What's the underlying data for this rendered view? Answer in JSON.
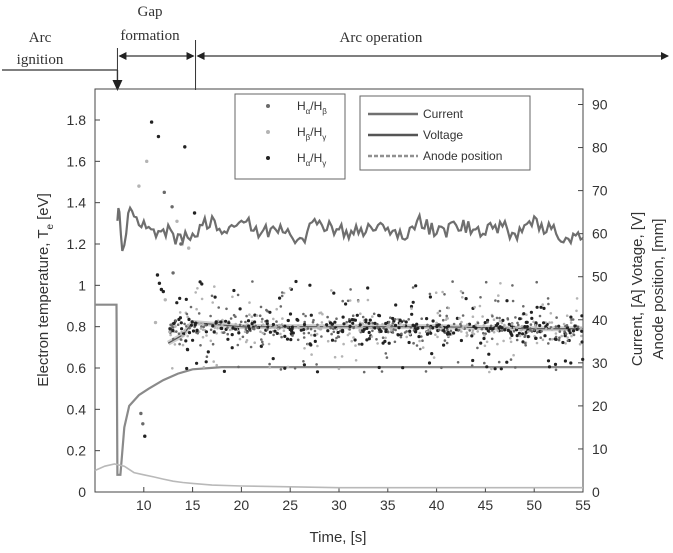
{
  "chart_data": {
    "type": "line",
    "phases": [
      {
        "label_lines": [
          "Arc",
          "ignition"
        ]
      },
      {
        "label_lines": [
          "Gap",
          "formation"
        ]
      },
      {
        "label_lines": [
          "Arc operation"
        ]
      }
    ],
    "xlabel": "Time, [s]",
    "ylabel_left": "Electron temperature, T",
    "ylabel_left_sub": "e",
    "ylabel_left_unit": "[eV]",
    "ylabel_right_line1": "Current, [A] Votage, [V]",
    "ylabel_right_line2": "Anode position, [mm]",
    "xlim": [
      5,
      55
    ],
    "ylim_left": [
      0,
      1.95
    ],
    "ylim_right": [
      0,
      93.6
    ],
    "x_ticks": [
      10,
      15,
      20,
      25,
      30,
      35,
      40,
      45,
      50,
      55
    ],
    "y_left_ticks": [
      0,
      0.2,
      0.4,
      0.6,
      0.8,
      1,
      1.2,
      1.4,
      1.6,
      1.8
    ],
    "y_right_ticks": [
      0,
      10,
      20,
      30,
      40,
      50,
      60,
      70,
      80,
      90
    ],
    "phase_boundaries_x": [
      7.3,
      15.3
    ],
    "legend_left": [
      {
        "label_main": "H",
        "label_sub1": "α",
        "label_slash": "/H",
        "label_sub2": "β",
        "color": "#6a6a6a"
      },
      {
        "label_main": "H",
        "label_sub1": "β",
        "label_slash": "/H",
        "label_sub2": "γ",
        "color": "#b4b4b4"
      },
      {
        "label_main": "H",
        "label_sub1": "α",
        "label_slash": "/H",
        "label_sub2": "γ",
        "color": "#222222"
      }
    ],
    "legend_right": [
      {
        "label": "Current",
        "color": "#707070",
        "style": "solid"
      },
      {
        "label": "Voltage",
        "color": "#555555",
        "style": "solid"
      },
      {
        "label": "Anode position",
        "color": "#909090",
        "style": "dashed"
      }
    ],
    "series": [
      {
        "name": "Current",
        "axis": "right",
        "color": "#8a8a8a",
        "x": [
          5,
          7.2,
          7.3,
          7.6,
          8.0,
          8.5,
          9.5,
          10.5,
          12,
          13.5,
          15,
          18,
          25,
          35,
          45,
          55
        ],
        "y": [
          43.5,
          43.5,
          4,
          4,
          15,
          20,
          22.5,
          24,
          26,
          27.5,
          28.5,
          29,
          29,
          29,
          29,
          29
        ]
      },
      {
        "name": "Voltage",
        "axis": "right",
        "color": "#6e6e6e",
        "x": [
          7.3,
          7.5,
          7.8,
          8.2,
          8.6,
          9,
          9.5,
          10,
          11,
          12,
          13,
          14,
          15,
          16,
          17,
          18,
          19,
          20,
          22,
          24,
          26,
          28,
          30,
          32,
          34,
          36,
          38,
          40,
          42,
          44,
          46,
          48,
          50,
          51,
          52,
          53,
          54,
          55
        ],
        "y": [
          63,
          65,
          56,
          60,
          66,
          64,
          62,
          63,
          61,
          61,
          60,
          58,
          60,
          62,
          64,
          60,
          62,
          63,
          60,
          62,
          59,
          63,
          61,
          60,
          62,
          59,
          63,
          60,
          62,
          61,
          62,
          60,
          64,
          60,
          62,
          58,
          60,
          59
        ]
      },
      {
        "name": "Anode position",
        "axis": "right",
        "color": "#b9b9b9",
        "x": [
          5,
          6,
          7,
          8,
          9,
          10,
          11,
          12,
          13,
          14,
          15,
          17,
          20,
          25,
          30,
          35,
          40,
          45,
          50,
          55
        ],
        "y": [
          5,
          6,
          6.5,
          6,
          4.5,
          4,
          3.5,
          3,
          2.5,
          2.2,
          2,
          1.6,
          1.4,
          1.2,
          1,
          1,
          1,
          1,
          1,
          1
        ]
      }
    ],
    "ratio_band_trend": {
      "axis": "left",
      "x": [
        12.5,
        14,
        15,
        20,
        30,
        40,
        50,
        55
      ],
      "y": [
        0.72,
        0.76,
        0.82,
        0.8,
        0.8,
        0.8,
        0.79,
        0.79
      ]
    },
    "ratio_scatter_early": [
      {
        "x": 10.8,
        "y": 1.79,
        "s": 2
      },
      {
        "x": 11.5,
        "y": 1.72,
        "s": 2
      },
      {
        "x": 12.1,
        "y": 1.45,
        "s": 0
      },
      {
        "x": 12.9,
        "y": 1.38,
        "s": 0
      },
      {
        "x": 13.4,
        "y": 1.31,
        "s": 1
      },
      {
        "x": 14.2,
        "y": 1.67,
        "s": 2
      },
      {
        "x": 13.0,
        "y": 1.06,
        "s": 0
      },
      {
        "x": 12.2,
        "y": 0.93,
        "s": 1
      },
      {
        "x": 11.2,
        "y": 0.82,
        "s": 1
      },
      {
        "x": 11.4,
        "y": 1.05,
        "s": 2
      },
      {
        "x": 11.6,
        "y": 1.01,
        "s": 2
      },
      {
        "x": 11.8,
        "y": 0.98,
        "s": 2
      },
      {
        "x": 12.0,
        "y": 0.97,
        "s": 2
      },
      {
        "x": 9.7,
        "y": 0.38,
        "s": 0
      },
      {
        "x": 9.9,
        "y": 0.33,
        "s": 0
      },
      {
        "x": 10.1,
        "y": 0.27,
        "s": 2
      },
      {
        "x": 9.5,
        "y": 1.48,
        "s": 1
      },
      {
        "x": 10.3,
        "y": 1.6,
        "s": 1
      },
      {
        "x": 14.6,
        "y": 1.18,
        "s": 1
      },
      {
        "x": 15.2,
        "y": 1.35,
        "s": 2
      },
      {
        "x": 13.8,
        "y": 1.2,
        "s": 0
      }
    ],
    "scatter_band_axis": "left",
    "scatter_band_x": [
      12.5,
      55
    ],
    "scatter_band_center": 0.79,
    "scatter_band_spread": 0.09,
    "scatter_outlier_range": [
      0.58,
      1.02
    ]
  }
}
